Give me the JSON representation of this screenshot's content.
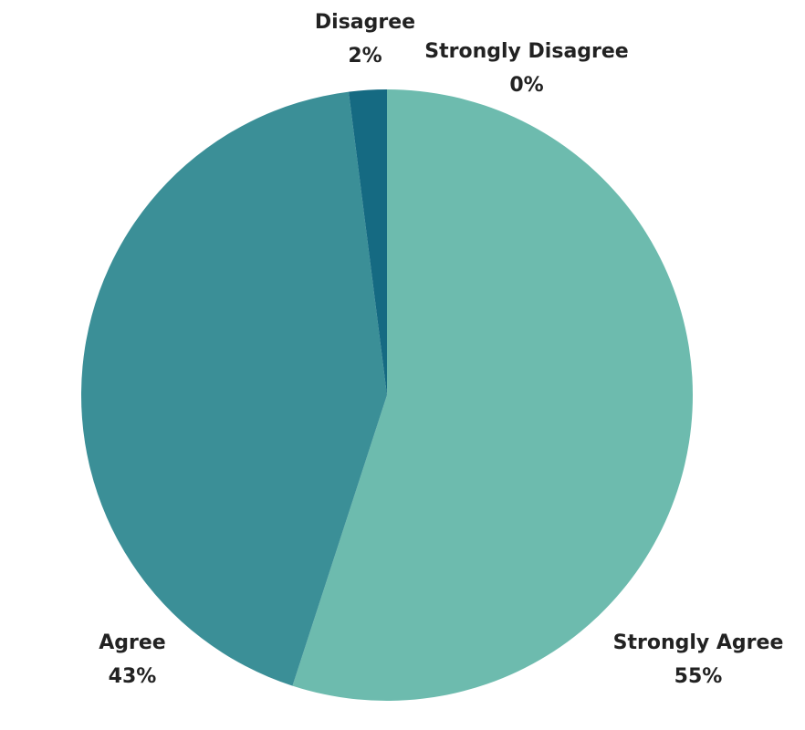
{
  "chart_data": {
    "type": "pie",
    "categories": [
      "Strongly Agree",
      "Agree",
      "Disagree",
      "Strongly Disagree"
    ],
    "values": [
      55,
      43,
      2,
      0
    ],
    "value_labels": [
      "55%",
      "43%",
      "2%",
      "0%"
    ],
    "colors": [
      "#6dbbae",
      "#3b8f97",
      "#156a82",
      "#0d4f66"
    ]
  }
}
